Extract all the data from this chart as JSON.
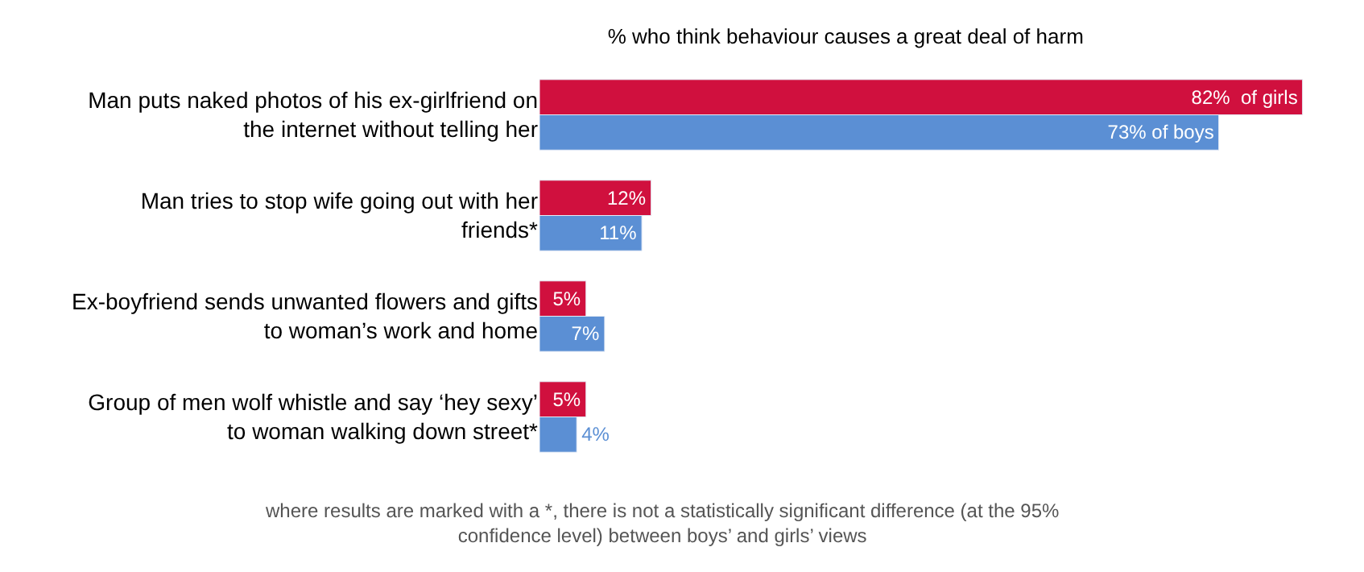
{
  "chart_data": {
    "type": "bar",
    "orientation": "horizontal",
    "title": "% who think behaviour causes a great deal of harm",
    "categories": [
      "Man puts naked photos of his ex-girlfriend on the internet without telling her",
      "Man tries to stop wife going out with her friends*",
      "Ex-boyfriend sends unwanted flowers and gifts to woman’s work and home",
      "Group of men wolf whistle and say ‘hey sexy’ to woman walking down street*"
    ],
    "series": [
      {
        "color": "#d0103e",
        "values": [
          82,
          12,
          5,
          5
        ],
        "value_labels": [
          "82%  of girls",
          "12%",
          "5%",
          "5%"
        ]
      },
      {
        "color": "#5b8fd4",
        "values": [
          73,
          11,
          7,
          4
        ],
        "value_labels": [
          "73% of boys",
          "11%",
          "7%",
          "4%"
        ]
      }
    ],
    "annotations": [
      "where results are marked with a *, there is not a statistically significant difference (at the 95% confidence level) between boys’ and girls’ views"
    ]
  }
}
